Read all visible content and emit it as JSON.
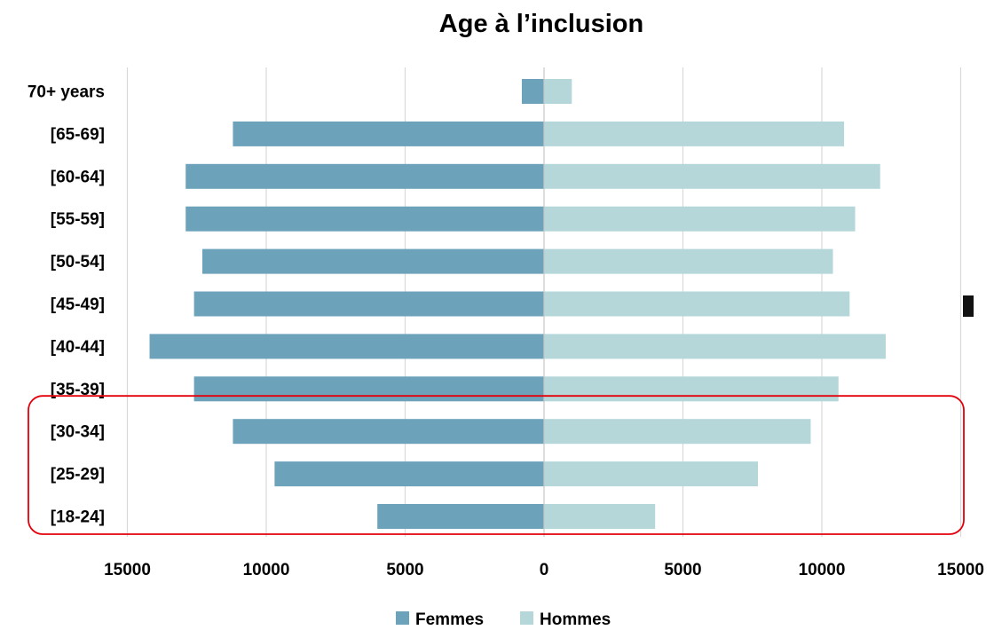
{
  "chart_data": {
    "type": "bar",
    "orientation": "horizontal",
    "layout": "population-pyramid",
    "title": "Age à l’inclusion",
    "categories": [
      "70+ years",
      "[65-69]",
      "[60-64]",
      "[55-59]",
      "[50-54]",
      "[45-49]",
      "[40-44]",
      "[35-39]",
      "[30-34]",
      "[25-29]",
      "[18-24]"
    ],
    "series": [
      {
        "name": "Femmes",
        "side": "left",
        "color": "#6da2bb",
        "values": [
          800,
          11200,
          12900,
          12900,
          12300,
          12600,
          14200,
          12600,
          11200,
          9700,
          6000
        ]
      },
      {
        "name": "Hommes",
        "side": "right",
        "color": "#b5d7da",
        "values": [
          1000,
          10800,
          12100,
          11200,
          10400,
          11000,
          12300,
          10600,
          9600,
          7700,
          4000
        ]
      }
    ],
    "xlim": [
      -15000,
      15000
    ],
    "x_ticks": [
      -15000,
      -10000,
      -5000,
      0,
      5000,
      10000,
      15000
    ],
    "x_tick_labels": [
      "15000",
      "10000",
      "5000",
      "0",
      "5000",
      "10000",
      "15000"
    ],
    "xlabel": "",
    "ylabel": "",
    "grid": "vertical",
    "legend": "bottom",
    "highlight": {
      "categories": [
        "[30-34]",
        "[25-29]",
        "[18-24]"
      ],
      "color": "#e3000b"
    }
  }
}
